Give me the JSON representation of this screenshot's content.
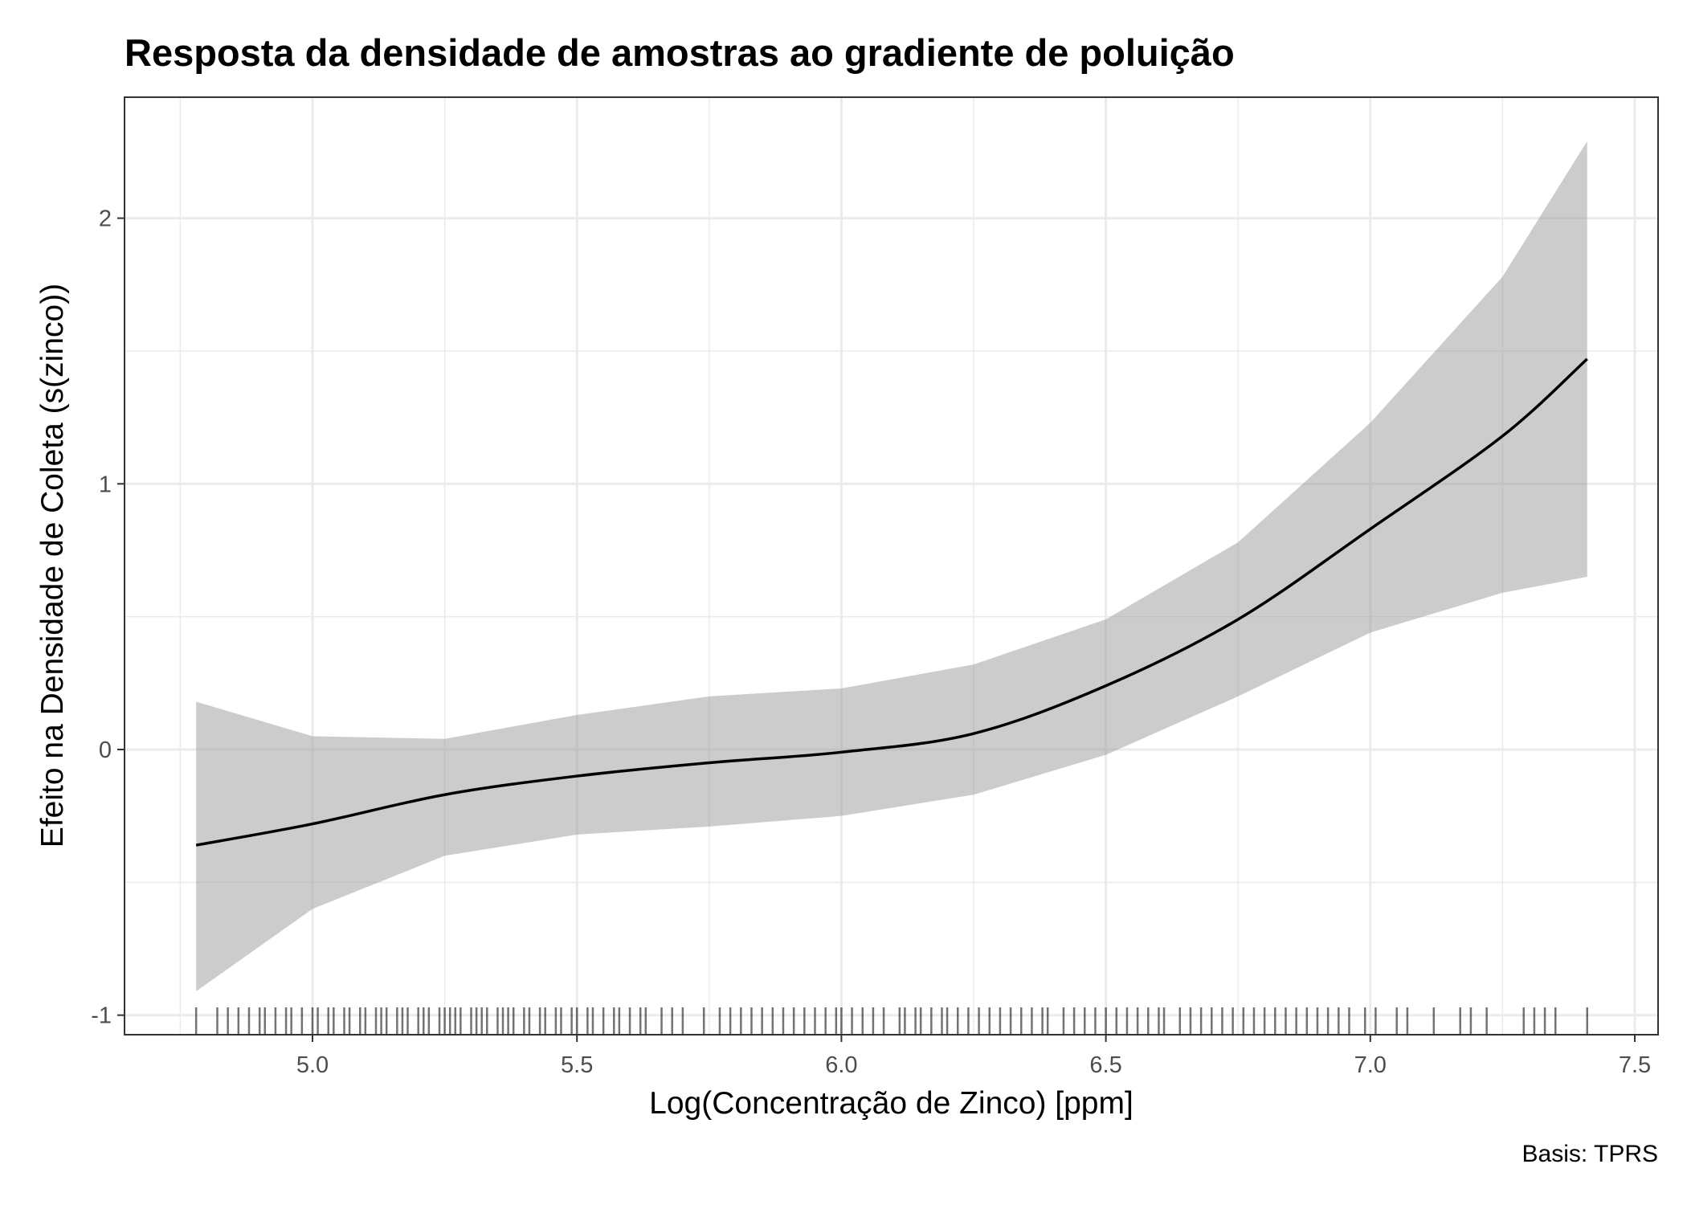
{
  "chart_data": {
    "type": "line",
    "title": "Resposta da densidade de amostras ao gradiente de poluição",
    "xlabel": "Log(Concentração de Zinco) [ppm]",
    "ylabel": "Efeito na Densidade de Coleta (s(zinco))",
    "caption": "Basis: TPRS",
    "xlim": [
      4.65,
      7.55
    ],
    "ylim": [
      -1.07,
      2.45
    ],
    "xticks": [
      5.0,
      5.5,
      6.0,
      6.5,
      7.0,
      7.5
    ],
    "xtick_labels": [
      "5.0",
      "5.5",
      "6.0",
      "6.5",
      "7.0",
      "7.5"
    ],
    "yticks": [
      -1,
      0,
      1,
      2
    ],
    "ytick_labels": [
      "-1",
      "0",
      "1",
      "2"
    ],
    "grid": true,
    "series": [
      {
        "name": "fit",
        "x": [
          4.78,
          5.0,
          5.25,
          5.5,
          5.75,
          6.0,
          6.25,
          6.5,
          6.75,
          7.0,
          7.25,
          7.41
        ],
        "y": [
          -0.36,
          -0.28,
          -0.17,
          -0.1,
          -0.05,
          -0.01,
          0.06,
          0.24,
          0.49,
          0.83,
          1.18,
          1.47
        ],
        "lower": [
          -0.91,
          -0.6,
          -0.4,
          -0.32,
          -0.29,
          -0.25,
          -0.17,
          -0.02,
          0.2,
          0.44,
          0.59,
          0.65
        ],
        "upper": [
          0.18,
          0.05,
          0.04,
          0.13,
          0.2,
          0.23,
          0.32,
          0.49,
          0.78,
          1.23,
          1.78,
          2.29
        ]
      }
    ],
    "rug": [
      4.78,
      4.82,
      4.84,
      4.86,
      4.88,
      4.9,
      4.91,
      4.93,
      4.95,
      4.96,
      4.98,
      5.0,
      5.01,
      5.03,
      5.04,
      5.06,
      5.07,
      5.09,
      5.1,
      5.12,
      5.13,
      5.14,
      5.16,
      5.17,
      5.18,
      5.2,
      5.21,
      5.22,
      5.24,
      5.25,
      5.26,
      5.27,
      5.28,
      5.3,
      5.31,
      5.32,
      5.33,
      5.35,
      5.36,
      5.37,
      5.38,
      5.4,
      5.41,
      5.43,
      5.44,
      5.46,
      5.47,
      5.49,
      5.5,
      5.52,
      5.53,
      5.55,
      5.57,
      5.58,
      5.6,
      5.62,
      5.63,
      5.66,
      5.68,
      5.7,
      5.74,
      5.77,
      5.79,
      5.81,
      5.83,
      5.85,
      5.87,
      5.89,
      5.91,
      5.93,
      5.95,
      5.97,
      5.99,
      6.0,
      6.02,
      6.04,
      6.06,
      6.08,
      6.11,
      6.12,
      6.14,
      6.15,
      6.17,
      6.19,
      6.2,
      6.22,
      6.24,
      6.26,
      6.28,
      6.3,
      6.32,
      6.34,
      6.36,
      6.38,
      6.39,
      6.42,
      6.44,
      6.46,
      6.48,
      6.5,
      6.52,
      6.54,
      6.56,
      6.58,
      6.6,
      6.61,
      6.64,
      6.66,
      6.68,
      6.7,
      6.72,
      6.74,
      6.76,
      6.78,
      6.8,
      6.82,
      6.84,
      6.86,
      6.88,
      6.9,
      6.92,
      6.94,
      6.96,
      6.99,
      7.01,
      7.05,
      7.07,
      7.12,
      7.17,
      7.19,
      7.22,
      7.29,
      7.31,
      7.33,
      7.35,
      7.41
    ]
  }
}
